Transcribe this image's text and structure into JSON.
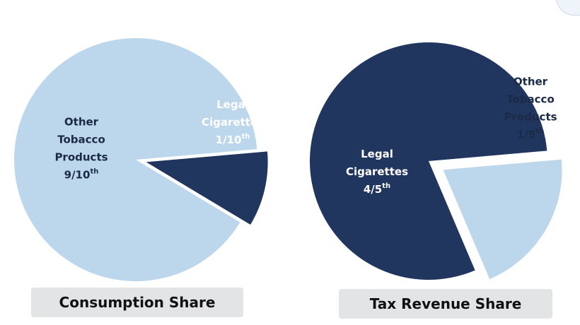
{
  "chart_data": [
    {
      "type": "pie",
      "title": "Consumption Share",
      "slices": [
        {
          "label_lines": [
            "Other",
            "Tobacco",
            "Products"
          ],
          "fraction_text": "9/10",
          "superscript": "th",
          "value": 0.9,
          "color": "#bcd6ec",
          "text_color": "#1b2a45",
          "exploded": false
        },
        {
          "label_lines": [
            "Legal",
            "Cigarettes"
          ],
          "fraction_text": "1/10",
          "superscript": "th",
          "value": 0.1,
          "color": "#21365f",
          "text_color": "#ffffff",
          "exploded": true
        }
      ]
    },
    {
      "type": "pie",
      "title": "Tax Revenue Share",
      "slices": [
        {
          "label_lines": [
            "Legal",
            "Cigarettes"
          ],
          "fraction_text": "4/5",
          "superscript": "th",
          "value": 0.8,
          "color": "#21365f",
          "text_color": "#ffffff",
          "exploded": false
        },
        {
          "label_lines": [
            "Other",
            "Tobacco",
            "Products"
          ],
          "fraction_text": "1/5",
          "superscript": "th",
          "value": 0.2,
          "color": "#bcd6ec",
          "text_color": "#1b2a45",
          "exploded": true
        }
      ]
    }
  ]
}
